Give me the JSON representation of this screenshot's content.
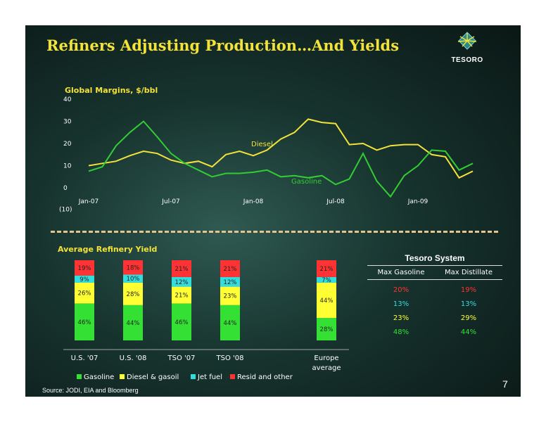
{
  "slide": {
    "title": "Refiners Adjusting Production…And Yields",
    "logo_text": "TESORO",
    "page_number": "7",
    "source": "Source: JODI,  EIA and Bloomberg"
  },
  "colors": {
    "background": "#17332e",
    "title": "#f2e23a",
    "diesel": "#f2e23a",
    "gasoline": "#33cc33",
    "gasoline_bar": "#33e033",
    "diesel_bar": "#ffff33",
    "jet_bar": "#33dddd",
    "resid_bar": "#ff3333",
    "divider": "#e6c48e"
  },
  "chart_data": [
    {
      "type": "line",
      "title": "Global Margins, $/bbl",
      "xlabel": "",
      "ylabel": "",
      "ylim": [
        -10,
        40
      ],
      "yticks": [
        "40",
        "30",
        "20",
        "10",
        "0",
        "(10)"
      ],
      "xtick_labels": [
        "Jan-07",
        "Jul-07",
        "Jan-08",
        "Jul-08",
        "Jan-09"
      ],
      "x": [
        "Jan-07",
        "Feb-07",
        "Mar-07",
        "Apr-07",
        "May-07",
        "Jun-07",
        "Jul-07",
        "Aug-07",
        "Sep-07",
        "Oct-07",
        "Nov-07",
        "Dec-07",
        "Jan-08",
        "Feb-08",
        "Mar-08",
        "Apr-08",
        "May-08",
        "Jun-08",
        "Jul-08",
        "Aug-08",
        "Sep-08",
        "Oct-08",
        "Nov-08",
        "Dec-08",
        "Jan-09",
        "Feb-09",
        "Mar-09",
        "Apr-09",
        "May-09"
      ],
      "series": [
        {
          "name": "Diesel",
          "values": [
            10,
            11,
            12,
            14.5,
            16.5,
            15.5,
            12.5,
            11,
            12,
            9.5,
            15,
            16.5,
            14.5,
            17,
            22,
            25,
            31,
            29.5,
            29,
            19.5,
            20,
            17,
            19,
            19.5,
            19.5,
            15,
            14,
            4.5,
            7.5
          ]
        },
        {
          "name": "Gasoline",
          "values": [
            7.5,
            9.5,
            19,
            25,
            30,
            23,
            15.5,
            11,
            8,
            5,
            6.5,
            6.5,
            7,
            8,
            5,
            5.5,
            4.5,
            5.5,
            1.5,
            4,
            15.5,
            3,
            -4,
            5.5,
            10,
            17,
            16.5,
            8,
            11
          ]
        }
      ],
      "grid": false,
      "legend": "inline labels"
    },
    {
      "type": "bar",
      "stacked": true,
      "title": "Average Refinery Yield",
      "categories": [
        "U.S. '07",
        "U.S. '08",
        "TSO '07",
        "TSO '08",
        "Europe average"
      ],
      "series": [
        {
          "name": "Gasoline",
          "values": [
            46,
            44,
            46,
            44,
            28
          ]
        },
        {
          "name": "Diesel & gasoil",
          "values": [
            26,
            28,
            21,
            23,
            44
          ]
        },
        {
          "name": "Jet fuel",
          "values": [
            9,
            10,
            12,
            12,
            7
          ]
        },
        {
          "name": "Resid and other",
          "values": [
            19,
            18,
            21,
            21,
            21
          ]
        }
      ],
      "ylim": [
        0,
        100
      ],
      "legend": "bottom"
    }
  ],
  "tesoro_table": {
    "title": "Tesoro System",
    "headers": [
      "Max Gasoline",
      "Max Distillate"
    ],
    "rows": [
      {
        "gasoline": "20%",
        "distillate": "19%",
        "color": "#ff3333"
      },
      {
        "gasoline": "13%",
        "distillate": "13%",
        "color": "#33dddd"
      },
      {
        "gasoline": "23%",
        "distillate": "29%",
        "color": "#ffff33"
      },
      {
        "gasoline": "48%",
        "distillate": "44%",
        "color": "#33e033"
      }
    ]
  }
}
